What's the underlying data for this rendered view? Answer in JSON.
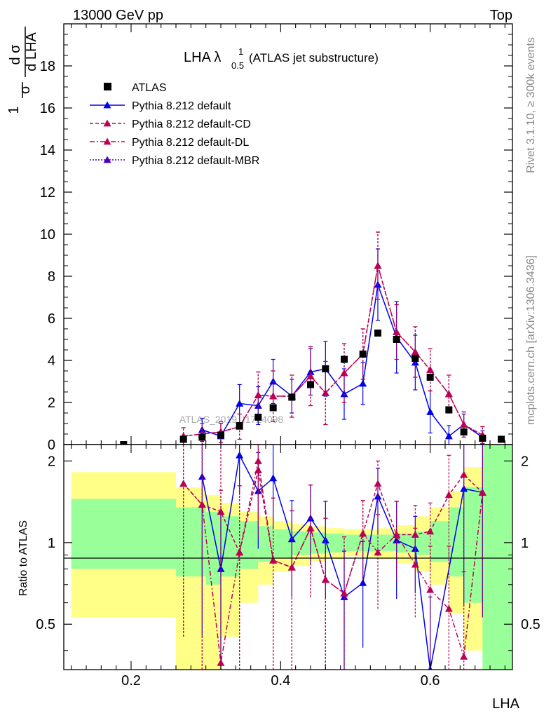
{
  "header": {
    "left": "13000 GeV pp",
    "right": "Top"
  },
  "side_labels": {
    "rivet": "Rivet 3.1.10, ≥ 300k events",
    "mcplots": "mcplots.cern.ch [arXiv:1306.3436]"
  },
  "analysis_tag": "ATLAS_2019_I1724098",
  "chart_data": [
    {
      "type": "scatter",
      "title": "LHA λ",
      "title_superscript": "1",
      "title_subscript": "0.5",
      "title_suffix": "(ATLAS jet substructure)",
      "ylabel_main": "d σ",
      "ylabel_sub": "d LHA",
      "ylabel_prefix_num": "1",
      "ylabel_prefix_den": "σ",
      "xlim": [
        0.11,
        0.71
      ],
      "ylim": [
        0,
        20
      ],
      "yticks": [
        "0",
        "2",
        "4",
        "6",
        "8",
        "10",
        "12",
        "14",
        "16",
        "18"
      ],
      "x": [
        0.19,
        0.27,
        0.295,
        0.32,
        0.345,
        0.37,
        0.39,
        0.415,
        0.44,
        0.46,
        0.485,
        0.51,
        0.53,
        0.555,
        0.58,
        0.6,
        0.625,
        0.645,
        0.67,
        0.695
      ],
      "series": [
        {
          "name": "ATLAS",
          "color": "#000000",
          "marker": "square",
          "values": [
            0.0,
            0.25,
            0.35,
            0.45,
            0.9,
            1.3,
            1.75,
            2.25,
            2.85,
            3.6,
            4.05,
            4.3,
            5.3,
            5.0,
            4.1,
            3.2,
            1.65,
            0.6,
            0.3,
            0.25
          ]
        },
        {
          "name": "Pythia 8.212 default",
          "color": "#0000ee",
          "line": "solid",
          "values": [
            null,
            null,
            0.7,
            0.4,
            1.95,
            1.85,
            3.0,
            2.3,
            3.45,
            3.6,
            2.4,
            2.9,
            7.6,
            5.1,
            3.9,
            1.55,
            0.4,
            0.95,
            0.35,
            null
          ],
          "errors": [
            null,
            null,
            0.55,
            0.6,
            0.9,
            0.9,
            1.05,
            0.8,
            1.1,
            1.3,
            1.2,
            1.0,
            1.7,
            1.7,
            1.3,
            1.0,
            0.5,
            0.5,
            0.3,
            null
          ]
        },
        {
          "name": "Pythia 8.212 default-CD",
          "color": "#bb0055",
          "line": "dashed",
          "values": [
            null,
            0.4,
            0.5,
            0.6,
            0.85,
            2.35,
            2.3,
            2.3,
            3.25,
            2.45,
            3.4,
            4.3,
            8.5,
            5.35,
            4.4,
            3.55,
            2.4,
            0.95,
            0.45,
            null
          ],
          "errors": [
            null,
            0.4,
            0.5,
            0.5,
            0.6,
            1.1,
            1.2,
            1.0,
            1.4,
            1.5,
            1.4,
            1.2,
            1.6,
            1.3,
            1.2,
            1.0,
            0.9,
            0.6,
            0.4,
            null
          ]
        },
        {
          "name": "Pythia 8.212 default-DL",
          "color": "#bb0055",
          "line": "dashdot",
          "values": [
            null,
            0.4,
            0.5,
            0.6,
            0.85,
            2.35,
            2.3,
            2.3,
            3.25,
            2.45,
            3.4,
            4.3,
            8.5,
            5.35,
            4.4,
            3.55,
            2.4,
            0.95,
            0.45,
            null
          ],
          "errors": [
            null,
            0.4,
            0.5,
            0.5,
            0.6,
            1.1,
            1.2,
            1.0,
            1.4,
            1.5,
            1.4,
            1.2,
            1.6,
            1.3,
            1.2,
            1.0,
            0.9,
            0.6,
            0.4,
            null
          ]
        },
        {
          "name": "Pythia 8.212 default-MBR",
          "color": "#4400bb",
          "line": "dotted",
          "values": [
            null,
            null,
            null,
            null,
            null,
            null,
            null,
            null,
            null,
            null,
            null,
            null,
            null,
            null,
            null,
            null,
            null,
            null,
            null,
            null
          ]
        }
      ]
    },
    {
      "type": "scatter",
      "ylabel": "Ratio to ATLAS",
      "xlabel": "LHA",
      "xlim": [
        0.11,
        0.71
      ],
      "ylim": [
        0.34,
        2.3
      ],
      "xticks": [
        "0.2",
        "0.4",
        "0.6"
      ],
      "yticks": [
        "0.5",
        "1",
        "2"
      ],
      "log_y": true,
      "band_colors": {
        "inner": "#99ff99",
        "outer": "#ffff88"
      },
      "band_edges": [
        0.12,
        0.26,
        0.3,
        0.32,
        0.345,
        0.37,
        0.39,
        0.415,
        0.44,
        0.46,
        0.485,
        0.51,
        0.53,
        0.555,
        0.58,
        0.6,
        0.625,
        0.645,
        0.67,
        0.695,
        0.71
      ],
      "band_inner": [
        [
          0.8,
          1.45
        ],
        [
          0.75,
          1.35
        ],
        [
          0.7,
          1.3
        ],
        [
          0.75,
          1.25
        ],
        [
          0.8,
          1.2
        ],
        [
          0.85,
          1.15
        ],
        [
          0.88,
          1.12
        ],
        [
          0.9,
          1.1
        ],
        [
          0.91,
          1.09
        ],
        [
          0.92,
          1.08
        ],
        [
          0.93,
          1.07
        ],
        [
          0.93,
          1.07
        ],
        [
          0.93,
          1.07
        ],
        [
          0.92,
          1.08
        ],
        [
          0.9,
          1.1
        ],
        [
          0.85,
          1.2
        ],
        [
          0.75,
          1.35
        ],
        [
          0.6,
          1.6
        ],
        [
          0.34,
          2.3
        ],
        [
          0.34,
          2.3
        ]
      ],
      "band_outer": [
        [
          0.53,
          1.82
        ],
        [
          0.34,
          1.6
        ],
        [
          0.34,
          1.5
        ],
        [
          0.45,
          1.4
        ],
        [
          0.6,
          1.3
        ],
        [
          0.7,
          1.25
        ],
        [
          0.78,
          1.2
        ],
        [
          0.82,
          1.17
        ],
        [
          0.85,
          1.15
        ],
        [
          0.87,
          1.13
        ],
        [
          0.89,
          1.12
        ],
        [
          0.88,
          1.12
        ],
        [
          0.87,
          1.13
        ],
        [
          0.84,
          1.16
        ],
        [
          0.78,
          1.25
        ],
        [
          0.7,
          1.35
        ],
        [
          0.55,
          1.55
        ],
        [
          0.4,
          1.9
        ],
        [
          0.34,
          2.3
        ],
        [
          0.34,
          2.3
        ]
      ],
      "x": [
        0.27,
        0.295,
        0.32,
        0.345,
        0.37,
        0.39,
        0.415,
        0.44,
        0.46,
        0.485,
        0.51,
        0.53,
        0.555,
        0.58,
        0.6,
        0.625,
        0.645,
        0.67
      ],
      "series": [
        {
          "name": "Pythia 8.212 default",
          "color": "#0000ee",
          "values": [
            null,
            1.75,
            0.8,
            2.1,
            1.55,
            1.73,
            1.03,
            1.23,
            1.02,
            0.63,
            0.71,
            1.48,
            1.02,
            0.95,
            0.33,
            null,
            1.58,
            1.53
          ],
          "errors": [
            null,
            1.3,
            0.5,
            0.6,
            0.6,
            0.6,
            0.4,
            0.4,
            0.4,
            0.3,
            0.3,
            0.4,
            0.4,
            0.3,
            0.3,
            null,
            1.0,
            1.0
          ]
        },
        {
          "name": "Pythia 8.212 default-CD",
          "color": "#bb0055",
          "values": [
            1.65,
            1.38,
            1.3,
            0.92,
            1.85,
            0.86,
            0.81,
            1.13,
            0.73,
            0.65,
            1.08,
            1.65,
            1.07,
            1.07,
            1.1,
            1.5,
            1.78,
            1.53
          ],
          "errors": [
            1.2,
            1.3,
            1.2,
            0.7,
            0.8,
            0.6,
            0.5,
            0.5,
            0.5,
            0.4,
            0.35,
            0.35,
            0.35,
            0.3,
            0.3,
            0.6,
            1.0,
            1.0
          ]
        },
        {
          "name": "Pythia 8.212 default-DL",
          "color": "#bb0055",
          "values": [
            1.65,
            1.38,
            0.36,
            0.92,
            2.0,
            0.86,
            0.81,
            1.13,
            0.73,
            0.65,
            1.08,
            0.92,
            1.07,
            0.83,
            0.67,
            0.57,
            0.38,
            1.53
          ],
          "errors": [
            1.2,
            1.3,
            1.2,
            0.7,
            0.8,
            0.6,
            0.5,
            0.5,
            0.5,
            0.4,
            0.35,
            0.35,
            0.35,
            0.3,
            0.3,
            0.4,
            0.4,
            1.0
          ]
        }
      ]
    }
  ]
}
